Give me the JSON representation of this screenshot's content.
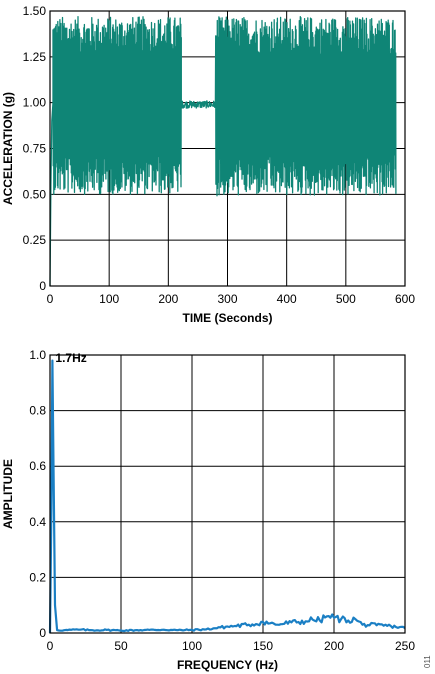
{
  "chart_data": [
    {
      "type": "line",
      "xlabel": "TIME (Seconds)",
      "ylabel": "ACCELERATION (g)",
      "xlim": [
        0,
        600
      ],
      "ylim": [
        0,
        1.5
      ],
      "xticks": [
        0,
        100,
        200,
        300,
        400,
        500,
        600
      ],
      "yticks": [
        "0",
        "0.25",
        "0.50",
        "0.75",
        "1.00",
        "1.25",
        "1.50"
      ],
      "grid": true,
      "line_color": "#0f8576",
      "series": [
        {
          "segments": [
            {
              "x_start": 0,
              "x_end": 5,
              "description_values": {
                "start": 0.0,
                "end": 1.0
              }
            },
            {
              "x_start": 5,
              "x_end": 222,
              "y_min": 0.5,
              "y_max": 1.47,
              "center": 1.0
            },
            {
              "x_start": 222,
              "x_end": 280,
              "y_min": 0.97,
              "y_max": 1.01,
              "center": 0.99
            },
            {
              "x_start": 280,
              "x_end": 585,
              "y_min": 0.49,
              "y_max": 1.47,
              "center": 1.0
            }
          ]
        }
      ]
    },
    {
      "type": "line",
      "xlabel": "FREQUENCY (Hz)",
      "ylabel": "AMPLITUDE",
      "xlim": [
        0,
        250
      ],
      "ylim": [
        0,
        1.0
      ],
      "xticks": [
        0,
        50,
        100,
        150,
        200,
        250
      ],
      "yticks": [
        "0",
        "0.2",
        "0.4",
        "0.6",
        "0.8",
        "1.0"
      ],
      "grid": true,
      "line_color": "#1a7fc4",
      "annotation": "1.7Hz",
      "series": [
        {
          "x": [
            0,
            1,
            1.7,
            2.5,
            3.5,
            5,
            10,
            20,
            30,
            40,
            50,
            60,
            70,
            80,
            90,
            100,
            110,
            120,
            130,
            140,
            145,
            150,
            155,
            160,
            170,
            180,
            185,
            190,
            195,
            200,
            205,
            210,
            215,
            220,
            230,
            240,
            250
          ],
          "y": [
            0.0,
            0.45,
            0.98,
            0.6,
            0.1,
            0.01,
            0.01,
            0.012,
            0.01,
            0.011,
            0.009,
            0.01,
            0.011,
            0.012,
            0.01,
            0.011,
            0.013,
            0.02,
            0.025,
            0.03,
            0.032,
            0.04,
            0.035,
            0.03,
            0.038,
            0.042,
            0.048,
            0.045,
            0.06,
            0.055,
            0.05,
            0.045,
            0.05,
            0.03,
            0.028,
            0.025,
            0.018
          ]
        }
      ]
    }
  ],
  "figure_id": "011"
}
